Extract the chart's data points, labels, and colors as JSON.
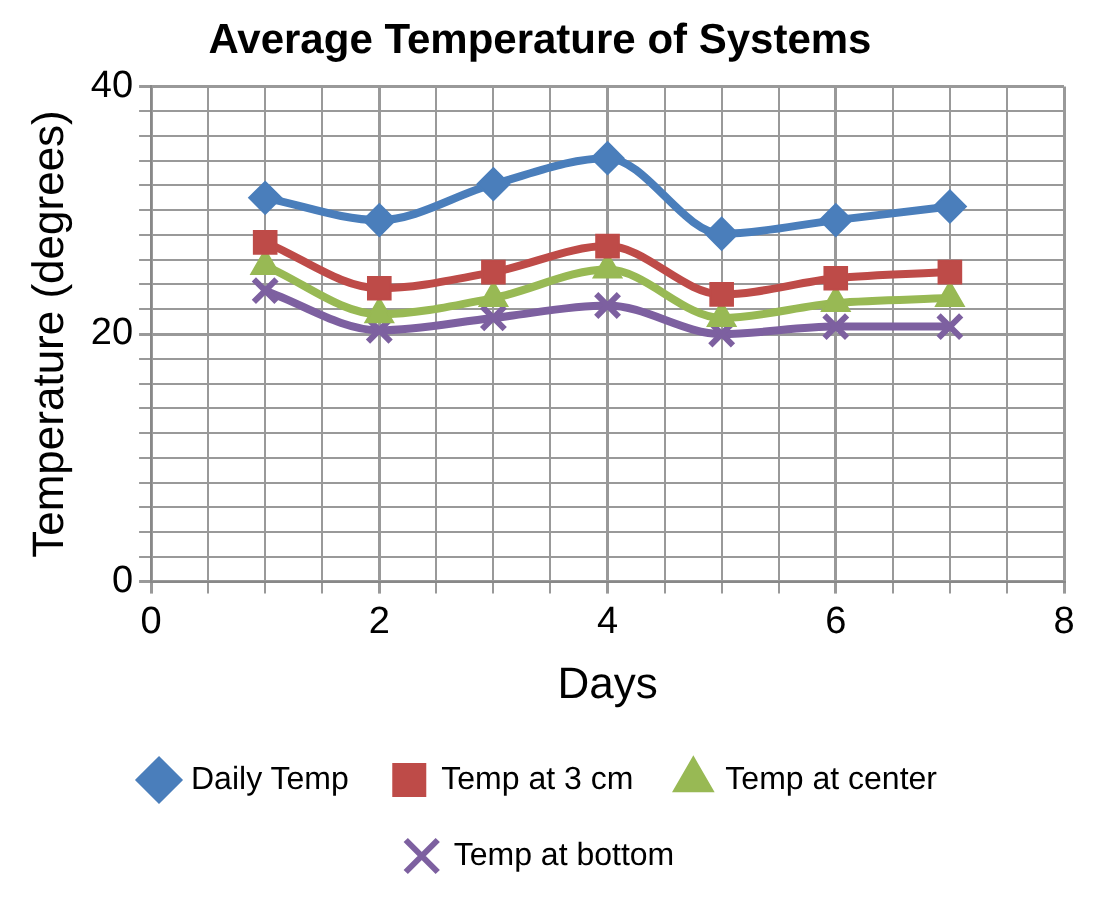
{
  "chart_data": {
    "type": "line",
    "title": "Average Temperature of Systems",
    "xlabel": "Days",
    "ylabel": "Temperature (degrees)",
    "x": [
      1,
      2,
      3,
      4,
      5,
      6,
      7
    ],
    "series": [
      {
        "name": "Daily Temp",
        "color": "#4a7ebb",
        "marker": "diamond",
        "values": [
          31,
          29.2,
          32.1,
          34.2,
          28.1,
          29.2,
          30.3
        ]
      },
      {
        "name": "Temp at 3 cm",
        "color": "#be4b48",
        "marker": "square",
        "values": [
          27.4,
          23.7,
          25,
          27.1,
          23.2,
          24.5,
          25
        ]
      },
      {
        "name": "Temp at center",
        "color": "#98b954",
        "marker": "triangle",
        "values": [
          25.5,
          21.6,
          22.9,
          25.2,
          21.3,
          22.5,
          22.9
        ]
      },
      {
        "name": "Temp at bottom",
        "color": "#7d60a0",
        "marker": "cross",
        "values": [
          23.5,
          20.3,
          21.3,
          22.3,
          20,
          20.6,
          20.6
        ]
      }
    ],
    "xlim": [
      0,
      8
    ],
    "xticks": [
      0,
      {
        "value": 0.5,
        "label": null
      },
      {
        "value": 1,
        "label": null
      },
      {
        "value": 1.5,
        "label": null
      },
      2,
      {
        "value": 2.5,
        "label": null
      },
      {
        "value": 3,
        "label": null
      },
      {
        "value": 3.5,
        "label": null
      },
      4,
      {
        "value": 4.5,
        "label": null
      },
      {
        "value": 5,
        "label": null
      },
      {
        "value": 5.5,
        "label": null
      },
      6,
      {
        "value": 6.5,
        "label": null
      },
      {
        "value": 7,
        "label": null
      },
      {
        "value": 7.5,
        "label": null
      },
      8
    ],
    "ylim": [
      0,
      40
    ],
    "yticks": [
      0,
      {
        "value": 2,
        "label": null
      },
      {
        "value": 4,
        "label": null
      },
      {
        "value": 6,
        "label": null
      },
      {
        "value": 8,
        "label": null
      },
      {
        "value": 10,
        "label": null
      },
      {
        "value": 12,
        "label": null
      },
      {
        "value": 14,
        "label": null
      },
      {
        "value": 16,
        "label": null
      },
      {
        "value": 18,
        "label": null
      },
      20,
      {
        "value": 22,
        "label": null
      },
      {
        "value": 24,
        "label": null
      },
      {
        "value": 26,
        "label": null
      },
      {
        "value": 28,
        "label": null
      },
      {
        "value": 30,
        "label": null
      },
      {
        "value": 32,
        "label": null
      },
      {
        "value": 34,
        "label": null
      },
      {
        "value": 36,
        "label": null
      },
      {
        "value": 38,
        "label": null
      },
      40
    ],
    "grid": true,
    "legend": "bottom",
    "line_style": "solid"
  }
}
